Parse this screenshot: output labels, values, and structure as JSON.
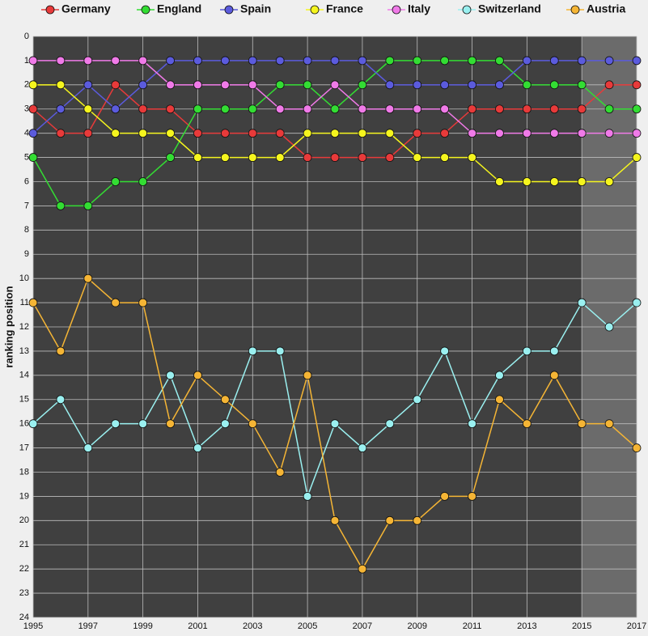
{
  "chart_data": {
    "type": "line",
    "y_label": "ranking position",
    "x": [
      1995,
      1996,
      1997,
      1998,
      1999,
      2000,
      2001,
      2002,
      2003,
      2004,
      2005,
      2006,
      2007,
      2008,
      2009,
      2010,
      2011,
      2012,
      2013,
      2014,
      2015,
      2016,
      2017
    ],
    "series": [
      {
        "name": "Germany",
        "color": "#e83a3a",
        "values": [
          3,
          4,
          4,
          2,
          3,
          3,
          4,
          4,
          4,
          4,
          5,
          5,
          5,
          5,
          4,
          4,
          3,
          3,
          3,
          3,
          3,
          2,
          2
        ]
      },
      {
        "name": "England",
        "color": "#33dd33",
        "values": [
          5,
          7,
          7,
          6,
          6,
          5,
          3,
          3,
          3,
          2,
          2,
          3,
          2,
          1,
          1,
          1,
          1,
          1,
          2,
          2,
          2,
          3,
          3
        ]
      },
      {
        "name": "Spain",
        "color": "#5b5bdd",
        "values": [
          4,
          3,
          2,
          3,
          2,
          1,
          1,
          1,
          1,
          1,
          1,
          1,
          1,
          2,
          2,
          2,
          2,
          2,
          1,
          1,
          1,
          1,
          1
        ]
      },
      {
        "name": "France",
        "color": "#f5f51e",
        "values": [
          2,
          2,
          3,
          4,
          4,
          4,
          5,
          5,
          5,
          5,
          4,
          4,
          4,
          4,
          5,
          5,
          5,
          6,
          6,
          6,
          6,
          6,
          5
        ]
      },
      {
        "name": "Italy",
        "color": "#f07ae8",
        "values": [
          1,
          1,
          1,
          1,
          1,
          2,
          2,
          2,
          2,
          3,
          3,
          2,
          3,
          3,
          3,
          3,
          4,
          4,
          4,
          4,
          4,
          4,
          4
        ]
      },
      {
        "name": "Switzerland",
        "color": "#9af0f0",
        "values": [
          16,
          15,
          17,
          16,
          16,
          14,
          17,
          16,
          13,
          13,
          19,
          16,
          17,
          16,
          15,
          13,
          16,
          14,
          13,
          13,
          11,
          12,
          11
        ]
      },
      {
        "name": "Austria",
        "color": "#f5b535",
        "values": [
          11,
          13,
          10,
          11,
          11,
          16,
          14,
          15,
          16,
          18,
          14,
          20,
          22,
          20,
          20,
          19,
          19,
          15,
          16,
          14,
          16,
          16,
          17
        ]
      }
    ],
    "xlim": [
      1995,
      2017
    ],
    "xticks": [
      1995,
      1997,
      1999,
      2001,
      2003,
      2005,
      2007,
      2009,
      2011,
      2013,
      2015,
      2017
    ],
    "ylim": [
      24,
      0
    ],
    "yticks": [
      0,
      1,
      2,
      3,
      4,
      5,
      6,
      7,
      8,
      9,
      10,
      11,
      12,
      13,
      14,
      15,
      16,
      17,
      18,
      19,
      20,
      21,
      22,
      23,
      24
    ],
    "grid": true,
    "legend": "top",
    "highlight_xrange": [
      2015,
      2017
    ]
  }
}
